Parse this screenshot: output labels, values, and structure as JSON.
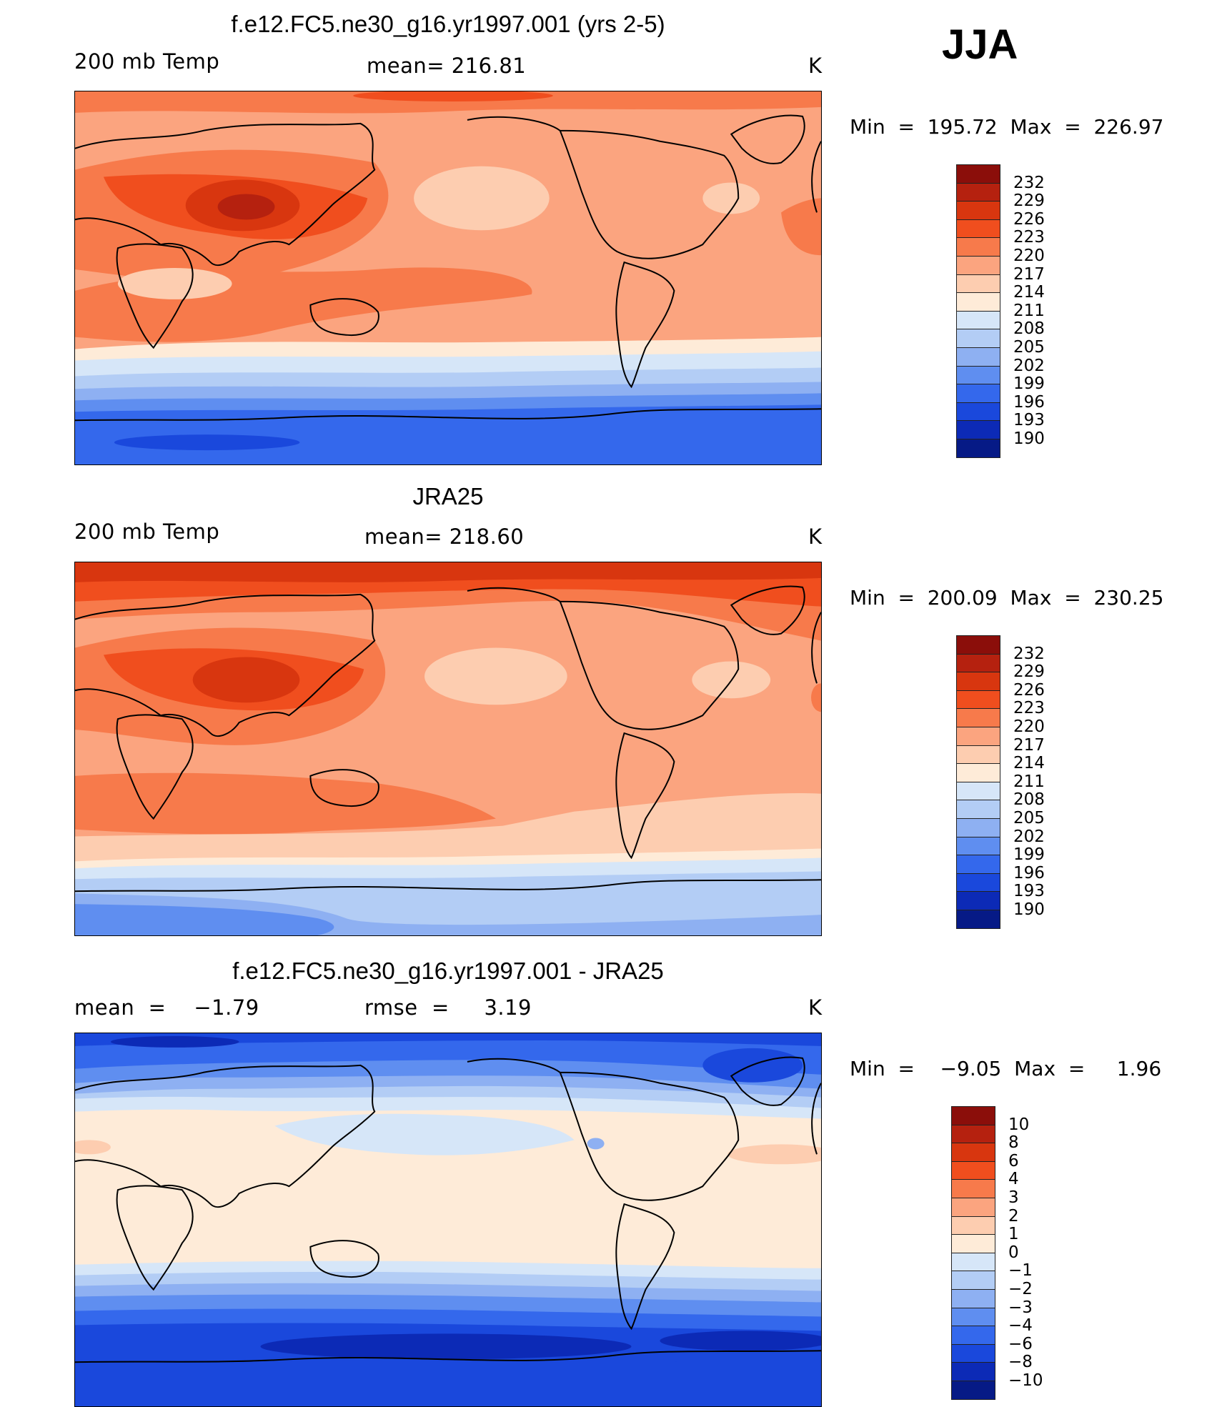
{
  "season": "JJA",
  "panels": [
    {
      "title": "f.e12.FC5.ne30_g16.yr1997.001 (yrs 2-5)",
      "left_label": "200 mb Temp",
      "center_label": "mean= 216.81",
      "units": "K",
      "minmax": "Min  =  195.72  Max  =  226.97",
      "colorbar": {
        "labels": [
          "232",
          "229",
          "226",
          "223",
          "220",
          "217",
          "214",
          "211",
          "208",
          "205",
          "202",
          "199",
          "196",
          "193",
          "190"
        ],
        "colors": [
          "#8b0e0a",
          "#b5210f",
          "#d8360f",
          "#f04e1e",
          "#f77a4b",
          "#fba47f",
          "#fdcdb0",
          "#feebd8",
          "#d6e6f8",
          "#b3cdf5",
          "#8eb0f2",
          "#5f8ef0",
          "#3468ec",
          "#1a48dc",
          "#0c2ab6",
          "#061a86"
        ]
      }
    },
    {
      "title": "JRA25",
      "left_label": "200 mb Temp",
      "center_label": "mean= 218.60",
      "units": "K",
      "minmax": "Min  =  200.09  Max  =  230.25",
      "colorbar": {
        "labels": [
          "232",
          "229",
          "226",
          "223",
          "220",
          "217",
          "214",
          "211",
          "208",
          "205",
          "202",
          "199",
          "196",
          "193",
          "190"
        ],
        "colors": [
          "#8b0e0a",
          "#b5210f",
          "#d8360f",
          "#f04e1e",
          "#f77a4b",
          "#fba47f",
          "#fdcdb0",
          "#feebd8",
          "#d6e6f8",
          "#b3cdf5",
          "#8eb0f2",
          "#5f8ef0",
          "#3468ec",
          "#1a48dc",
          "#0c2ab6",
          "#061a86"
        ]
      }
    },
    {
      "title": "f.e12.FC5.ne30_g16.yr1997.001 - JRA25",
      "left_label": "mean  =    −1.79",
      "center_label": "rmse  =     3.19",
      "units": "K",
      "minmax": "Min  =    −9.05  Max  =     1.96",
      "colorbar": {
        "labels": [
          "10",
          "8",
          "6",
          "4",
          "3",
          "2",
          "1",
          "0",
          "−1",
          "−2",
          "−3",
          "−4",
          "−6",
          "−8",
          "−10"
        ],
        "colors": [
          "#8b0e0a",
          "#b5210f",
          "#d8360f",
          "#f04e1e",
          "#f77a4b",
          "#fba47f",
          "#fdcdb0",
          "#feebd8",
          "#d6e6f8",
          "#b3cdf5",
          "#8eb0f2",
          "#5f8ef0",
          "#3468ec",
          "#1a48dc",
          "#0c2ab6",
          "#061a86"
        ]
      }
    }
  ]
}
